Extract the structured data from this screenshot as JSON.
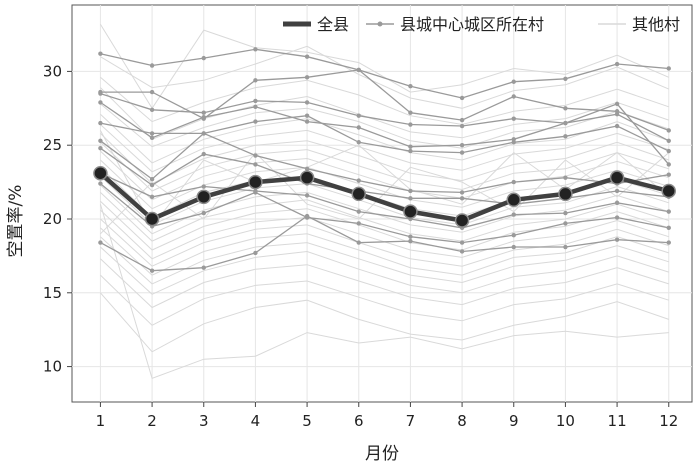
{
  "chart_data": {
    "type": "line",
    "title": "",
    "xlabel": "月份",
    "ylabel": "空置率/%",
    "x": [
      1,
      2,
      3,
      4,
      5,
      6,
      7,
      8,
      9,
      10,
      11,
      12
    ],
    "xlim": [
      0.45,
      12.45
    ],
    "ylim": [
      7.6,
      34.5
    ],
    "yticks": [
      10,
      15,
      20,
      25,
      30
    ],
    "grid": true,
    "legend_position": "top-right",
    "series": [
      {
        "name": "全县",
        "role": "county",
        "color": "#404040",
        "values": [
          23.1,
          20.0,
          21.5,
          22.5,
          22.8,
          21.7,
          20.5,
          19.9,
          21.3,
          21.7,
          22.8,
          21.9
        ]
      },
      {
        "name": "县城中心城区所在村",
        "role": "urban",
        "color": "#9a9a9a",
        "lines": [
          [
            31.2,
            30.4,
            30.9,
            31.5,
            31.0,
            30.1,
            29.0,
            28.2,
            29.3,
            29.5,
            30.5,
            30.2
          ],
          [
            28.6,
            28.6,
            26.8,
            29.4,
            29.6,
            30.1,
            27.2,
            26.7,
            28.3,
            27.5,
            27.3,
            26.0
          ],
          [
            28.5,
            27.4,
            27.2,
            28.0,
            27.9,
            27.0,
            26.4,
            26.3,
            26.8,
            26.5,
            27.1,
            25.3
          ],
          [
            27.9,
            25.5,
            26.9,
            27.6,
            26.6,
            26.2,
            24.9,
            25.0,
            25.4,
            26.5,
            27.8,
            23.7
          ],
          [
            26.5,
            25.8,
            25.8,
            26.6,
            27.0,
            25.2,
            24.6,
            24.5,
            25.2,
            25.6,
            26.3,
            24.6
          ],
          [
            25.3,
            22.7,
            25.8,
            24.3,
            23.4,
            22.6,
            21.9,
            21.8,
            22.5,
            22.8,
            22.4,
            23.0
          ],
          [
            24.8,
            22.3,
            24.4,
            23.7,
            22.4,
            21.9,
            21.4,
            21.4,
            21.0,
            21.4,
            21.9,
            21.5
          ],
          [
            23.1,
            21.5,
            22.2,
            21.9,
            21.6,
            20.5,
            20.0,
            19.4,
            20.3,
            20.4,
            21.1,
            20.5
          ],
          [
            22.4,
            19.5,
            20.4,
            21.8,
            20.1,
            19.7,
            18.8,
            18.4,
            18.9,
            19.7,
            20.1,
            19.4
          ],
          [
            18.4,
            16.5,
            16.7,
            17.7,
            20.2,
            18.4,
            18.5,
            17.8,
            18.1,
            18.1,
            18.6,
            18.4
          ]
        ]
      },
      {
        "name": "其他村",
        "role": "other",
        "color": "#d9d9d9",
        "lines": [
          [
            33.2,
            27.5,
            32.8,
            31.6,
            31.3,
            30.6,
            28.6,
            29.1,
            30.2,
            29.8,
            31.1,
            29.6
          ],
          [
            31.0,
            28.9,
            29.4,
            30.5,
            31.7,
            29.8,
            28.2,
            27.5,
            28.7,
            29.1,
            30.3,
            28.8
          ],
          [
            29.6,
            26.6,
            27.9,
            28.9,
            29.4,
            28.4,
            27.0,
            26.4,
            27.3,
            27.7,
            28.8,
            27.6
          ],
          [
            28.9,
            25.4,
            26.8,
            27.7,
            28.3,
            27.1,
            25.9,
            25.5,
            26.4,
            26.8,
            27.9,
            26.7
          ],
          [
            27.8,
            24.9,
            26.2,
            27.2,
            27.5,
            26.6,
            25.3,
            24.8,
            25.9,
            26.2,
            27.3,
            26.1
          ],
          [
            27.1,
            23.8,
            25.4,
            26.3,
            26.8,
            25.7,
            24.5,
            24.0,
            25.1,
            25.4,
            26.6,
            25.3
          ],
          [
            26.4,
            23.2,
            24.8,
            25.6,
            26.0,
            24.9,
            23.8,
            23.3,
            24.4,
            24.8,
            25.8,
            24.7
          ],
          [
            25.8,
            22.4,
            24.1,
            25.0,
            25.3,
            24.3,
            23.1,
            22.6,
            23.7,
            24.1,
            25.2,
            24.0
          ],
          [
            25.2,
            21.9,
            23.5,
            24.4,
            24.7,
            23.6,
            22.5,
            22.0,
            23.1,
            23.4,
            24.5,
            23.4
          ],
          [
            24.6,
            21.3,
            22.9,
            23.8,
            24.1,
            23.0,
            21.9,
            21.4,
            22.5,
            22.9,
            23.9,
            22.8
          ],
          [
            24.0,
            20.7,
            22.3,
            23.2,
            23.5,
            22.4,
            21.3,
            20.8,
            21.9,
            22.3,
            23.3,
            22.2
          ],
          [
            23.5,
            20.1,
            21.8,
            22.6,
            22.9,
            21.8,
            20.7,
            20.2,
            21.3,
            21.7,
            22.7,
            21.6
          ],
          [
            22.9,
            19.6,
            21.2,
            22.1,
            22.4,
            21.3,
            20.1,
            19.6,
            20.8,
            21.1,
            22.2,
            21.1
          ],
          [
            22.3,
            19.0,
            20.6,
            21.5,
            21.8,
            20.7,
            19.6,
            19.1,
            20.2,
            20.6,
            21.6,
            20.5
          ],
          [
            21.8,
            18.5,
            20.1,
            20.9,
            21.3,
            20.1,
            19.0,
            18.5,
            19.6,
            20.0,
            21.0,
            19.9
          ],
          [
            21.2,
            17.9,
            19.5,
            20.4,
            20.7,
            19.6,
            18.4,
            17.9,
            19.1,
            19.5,
            20.5,
            19.4
          ],
          [
            20.6,
            17.3,
            18.9,
            19.8,
            20.1,
            19.0,
            17.9,
            17.4,
            18.5,
            18.9,
            19.9,
            18.8
          ],
          [
            20.0,
            16.8,
            18.4,
            19.3,
            19.6,
            18.4,
            17.3,
            16.8,
            17.9,
            18.3,
            19.3,
            18.2
          ],
          [
            19.4,
            16.2,
            17.8,
            18.7,
            19.0,
            17.9,
            16.7,
            16.2,
            17.4,
            17.7,
            18.8,
            17.7
          ],
          [
            18.8,
            15.6,
            17.2,
            18.1,
            18.4,
            17.3,
            16.2,
            15.7,
            16.8,
            17.2,
            18.2,
            17.1
          ],
          [
            18.1,
            14.9,
            16.5,
            17.4,
            17.8,
            16.6,
            15.5,
            15.0,
            16.1,
            16.5,
            17.5,
            16.4
          ],
          [
            17.3,
            14.0,
            15.7,
            16.6,
            16.9,
            15.8,
            14.7,
            14.2,
            15.3,
            15.7,
            16.7,
            15.6
          ],
          [
            16.2,
            12.8,
            14.6,
            15.5,
            15.8,
            14.7,
            13.6,
            13.1,
            14.2,
            14.6,
            15.6,
            14.5
          ],
          [
            15.0,
            11.0,
            12.9,
            14.0,
            14.5,
            13.2,
            12.2,
            11.8,
            12.8,
            13.4,
            14.4,
            13.2
          ],
          [
            21.0,
            9.2,
            10.5,
            10.7,
            12.3,
            11.6,
            12.0,
            11.2,
            12.1,
            12.4,
            12.0,
            12.3
          ],
          [
            26.0,
            19.5,
            24.0,
            22.5,
            23.5,
            25.0,
            22.0,
            21.0,
            24.5,
            22.0,
            24.5,
            21.5
          ],
          [
            19.0,
            22.5,
            20.0,
            24.5,
            21.0,
            20.0,
            23.5,
            22.5,
            20.5,
            24.0,
            21.5,
            24.5
          ]
        ]
      }
    ]
  }
}
